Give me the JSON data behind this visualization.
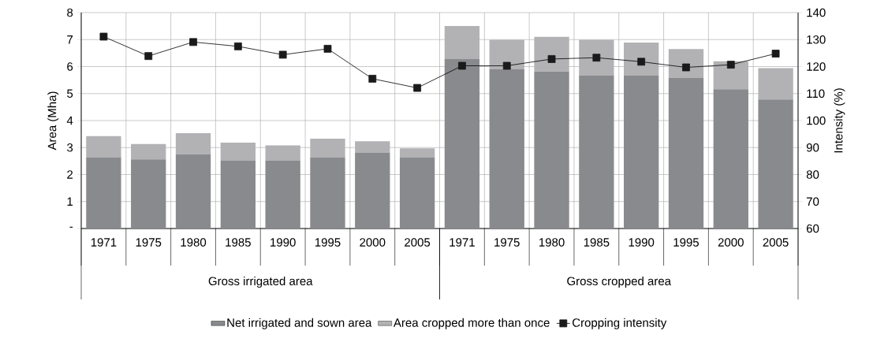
{
  "chart_data": {
    "type": "bar",
    "stacked": true,
    "ylabel": "Area (Mha)",
    "y2label": "Intensity (%)",
    "categories": [
      "1971",
      "1975",
      "1980",
      "1985",
      "1990",
      "1995",
      "2000",
      "2005",
      "1971",
      "1975",
      "1980",
      "1985",
      "1990",
      "1995",
      "2000",
      "2005"
    ],
    "series": [
      {
        "name": "Net irrigated and sown area",
        "color": "#898a8e",
        "values": [
          2.63,
          2.56,
          2.75,
          2.51,
          2.51,
          2.63,
          2.8,
          2.63,
          6.29,
          5.9,
          5.82,
          5.68,
          5.68,
          5.58,
          5.16,
          4.78
        ]
      },
      {
        "name": "Area cropped more than once",
        "color": "#b2b2b5",
        "values": [
          0.79,
          0.57,
          0.78,
          0.67,
          0.57,
          0.7,
          0.43,
          0.34,
          1.21,
          1.09,
          1.28,
          1.31,
          1.21,
          1.07,
          1.04,
          1.16
        ]
      },
      {
        "name": "Cropping intensity",
        "type": "line",
        "axis": "y2",
        "color": "#1a1a1a",
        "values": [
          131.1,
          123.9,
          129.1,
          127.5,
          124.4,
          126.6,
          115.5,
          112.1,
          120.3,
          120.3,
          122.8,
          123.3,
          121.8,
          119.7,
          120.7,
          124.8
        ]
      }
    ],
    "ylim": [
      0,
      8
    ],
    "yticks": [
      {
        "value": 0,
        "label": "-"
      },
      1,
      2,
      3,
      4,
      5,
      6,
      7,
      8
    ],
    "y2lim": [
      60,
      140
    ],
    "y2ticks": [
      60,
      70,
      80,
      90,
      100,
      110,
      120,
      130,
      140
    ],
    "annotations": [
      "Gross irrigated area",
      "Gross cropped area"
    ],
    "grid": true,
    "legend": "bottom",
    "marker": "square",
    "line_style": "solid"
  }
}
